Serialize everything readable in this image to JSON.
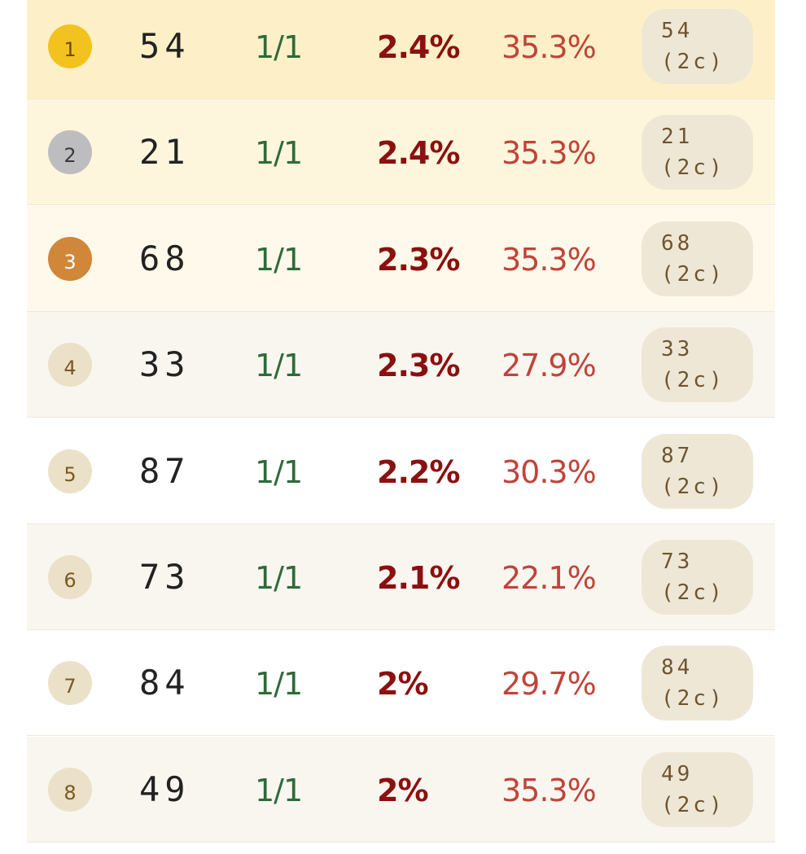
{
  "table": {
    "rows": [
      {
        "rank": "1",
        "id": "54",
        "ratio": "1/1",
        "share": "2.4%",
        "rate": "35.3%",
        "tag": [
          "54",
          "(2c)"
        ]
      },
      {
        "rank": "2",
        "id": "21",
        "ratio": "1/1",
        "share": "2.4%",
        "rate": "35.3%",
        "tag": [
          "21",
          "(2c)"
        ]
      },
      {
        "rank": "3",
        "id": "68",
        "ratio": "1/1",
        "share": "2.3%",
        "rate": "35.3%",
        "tag": [
          "68",
          "(2c)"
        ]
      },
      {
        "rank": "4",
        "id": "33",
        "ratio": "1/1",
        "share": "2.3%",
        "rate": "27.9%",
        "tag": [
          "33",
          "(2c)"
        ]
      },
      {
        "rank": "5",
        "id": "87",
        "ratio": "1/1",
        "share": "2.2%",
        "rate": "30.3%",
        "tag": [
          "87",
          "(2c)"
        ]
      },
      {
        "rank": "6",
        "id": "73",
        "ratio": "1/1",
        "share": "2.1%",
        "rate": "22.1%",
        "tag": [
          "73",
          "(2c)"
        ]
      },
      {
        "rank": "7",
        "id": "84",
        "ratio": "1/1",
        "share": "2%",
        "rate": "29.7%",
        "tag": [
          "84",
          "(2c)"
        ]
      },
      {
        "rank": "8",
        "id": "49",
        "ratio": "1/1",
        "share": "2%",
        "rate": "35.3%",
        "tag": [
          "49",
          "(2c)"
        ]
      }
    ]
  }
}
